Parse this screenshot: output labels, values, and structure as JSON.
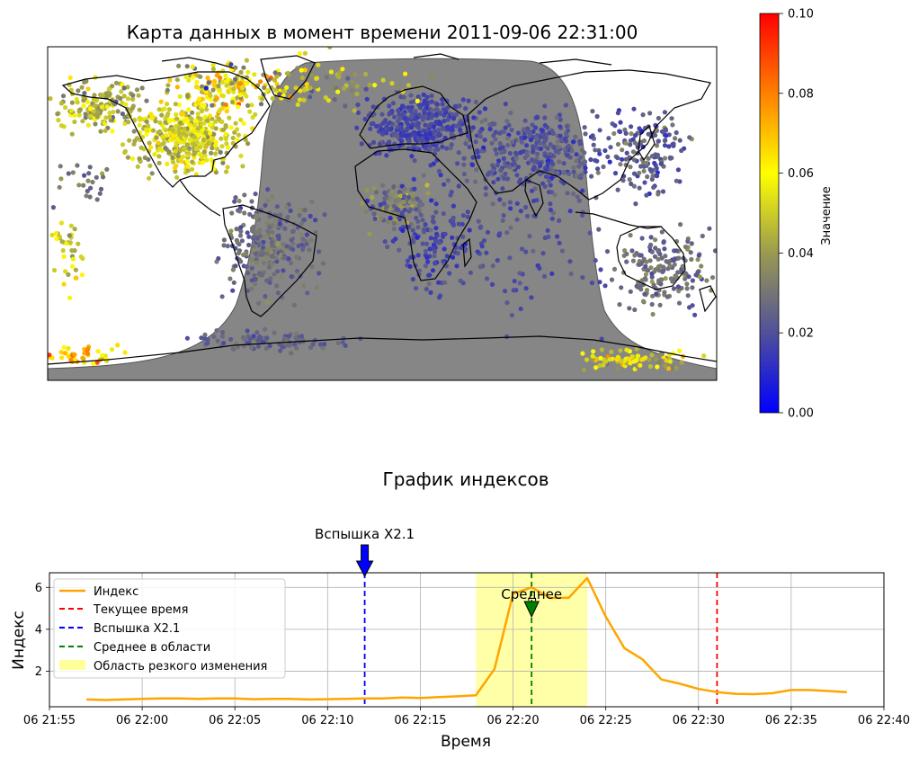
{
  "map": {
    "title": "Карта данных в момент времени 2011-09-06 22:31:00",
    "colorbar": {
      "label": "Значение",
      "min": 0.0,
      "max": 0.1,
      "ticks": [
        "0.00",
        "0.02",
        "0.04",
        "0.06",
        "0.08",
        "0.10"
      ],
      "colormap": [
        "#0000ff",
        "#50509a",
        "#9a9a50",
        "#ffff00",
        "#ff8000",
        "#ff0000"
      ]
    },
    "night_color": "#808080",
    "coastline_color": "#000000"
  },
  "suptitle": "График индексов",
  "chart_data": {
    "type": "line",
    "title": "",
    "xlabel": "Время",
    "ylabel": "Индекс",
    "x_unit": "minutes after 06 21:55",
    "xlim": [
      "06 21:55",
      "06 22:40"
    ],
    "ylim": [
      0.3,
      6.7
    ],
    "grid": true,
    "legend_position": "upper-left",
    "x_ticks": [
      "06 21:55",
      "06 22:00",
      "06 22:05",
      "06 22:10",
      "06 22:15",
      "06 22:20",
      "06 22:25",
      "06 22:30",
      "06 22:35",
      "06 22:40"
    ],
    "y_ticks": [
      2,
      4,
      6
    ],
    "series": [
      {
        "name": "Индекс",
        "color": "#ffa500",
        "x": [
          "06 21:57",
          "06 21:58",
          "06 21:59",
          "06 22:00",
          "06 22:01",
          "06 22:02",
          "06 22:03",
          "06 22:04",
          "06 22:05",
          "06 22:06",
          "06 22:07",
          "06 22:08",
          "06 22:09",
          "06 22:10",
          "06 22:11",
          "06 22:12",
          "06 22:13",
          "06 22:14",
          "06 22:15",
          "06 22:16",
          "06 22:17",
          "06 22:18",
          "06 22:19",
          "06 22:20",
          "06 22:21",
          "06 22:22",
          "06 22:23",
          "06 22:24",
          "06 22:25",
          "06 22:26",
          "06 22:27",
          "06 22:28",
          "06 22:29",
          "06 22:30",
          "06 22:31",
          "06 22:32",
          "06 22:33",
          "06 22:34",
          "06 22:35",
          "06 22:36",
          "06 22:37",
          "06 22:38"
        ],
        "values": [
          0.65,
          0.62,
          0.65,
          0.68,
          0.7,
          0.7,
          0.68,
          0.7,
          0.7,
          0.66,
          0.68,
          0.68,
          0.65,
          0.66,
          0.68,
          0.7,
          0.7,
          0.74,
          0.72,
          0.76,
          0.8,
          0.85,
          2.1,
          5.7,
          6.0,
          5.5,
          5.5,
          6.45,
          4.6,
          3.1,
          2.55,
          1.6,
          1.4,
          1.15,
          1.0,
          0.92,
          0.9,
          0.95,
          1.1,
          1.1,
          1.05,
          1.0
        ]
      }
    ],
    "vlines": [
      {
        "name": "Текущее время",
        "x": "06 22:31",
        "color": "#ff0000"
      },
      {
        "name": "Вспышка X2.1",
        "x": "06 22:12",
        "color": "#0000ff"
      },
      {
        "name": "Среднее в области",
        "x": "06 22:21",
        "color": "#008000"
      }
    ],
    "span": {
      "name": "Область резкого изменения",
      "x_start": "06 22:18",
      "x_end": "06 22:24",
      "color": "#ffff99"
    },
    "annotations": [
      {
        "text": "Вспышка X2.1",
        "x": "06 22:12",
        "color": "#0000ff"
      },
      {
        "text": "Среднее",
        "x": "06 22:21",
        "color": "#008000"
      }
    ]
  }
}
